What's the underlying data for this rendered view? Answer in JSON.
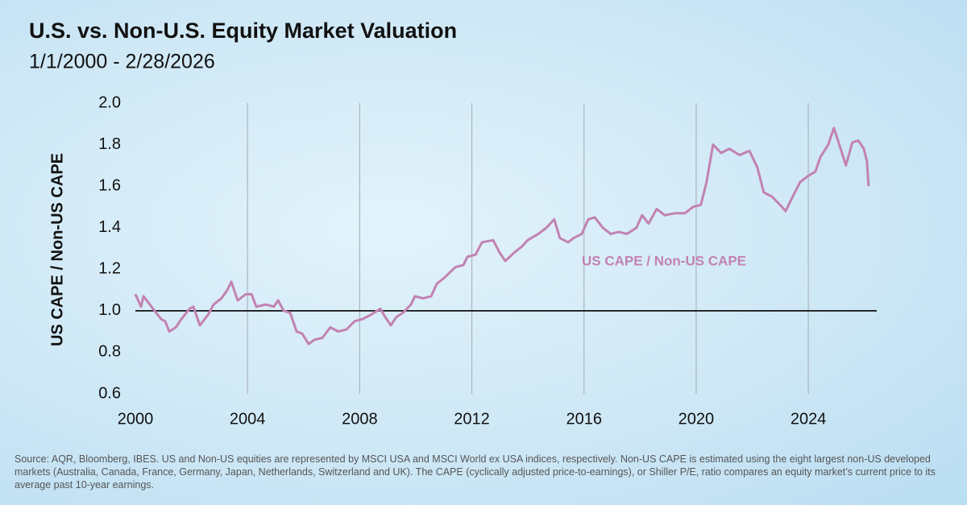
{
  "chart_data": {
    "type": "line",
    "title": "U.S. vs. Non-U.S. Equity Market Valuation",
    "subtitle": "1/1/2000 - 2/28/2026",
    "y_label": "US CAPE / Non-US CAPE",
    "source": "Source: AQR, Bloomberg, IBES. US and Non-US equities are represented by MSCI USA and MSCI World ex USA indices, respectively. Non-US CAPE is estimated using the eight largest non-US developed markets (Australia, Canada, France, Germany, Japan, Netherlands, Switzerland and UK). The CAPE (cyclically adjusted price-to-earnings), or Shiller P/E, ratio compares an equity market’s current price to its average past 10-year earnings.",
    "xlim": [
      2000,
      2026.44
    ],
    "xticks": [
      2000,
      2004,
      2008,
      2012,
      2016,
      2020,
      2024
    ],
    "ylim": [
      0.6,
      2.0
    ],
    "yticks": [
      0.6,
      0.8,
      {
        "value": 1.0,
        "label": "1.0"
      },
      1.2,
      1.4,
      1.6,
      1.8,
      {
        "value": 2.0,
        "label": "2.0"
      }
    ],
    "reference_line": 1.0,
    "grid": "x",
    "series": [
      {
        "name": "US CAPE / Non-US CAPE",
        "color": "#c282b2",
        "x": [
          2000.0,
          2000.2,
          2000.29,
          2000.63,
          2000.92,
          2001.06,
          2001.21,
          2001.44,
          2001.64,
          2001.93,
          2002.07,
          2002.3,
          2002.59,
          2002.79,
          2003.07,
          2003.28,
          2003.42,
          2003.65,
          2003.94,
          2004.14,
          2004.31,
          2004.66,
          2004.94,
          2005.09,
          2005.29,
          2005.52,
          2005.75,
          2005.95,
          2006.18,
          2006.38,
          2006.67,
          2006.95,
          2007.24,
          2007.53,
          2007.82,
          2008.1,
          2008.39,
          2008.74,
          2008.91,
          2009.11,
          2009.31,
          2009.54,
          2009.83,
          2009.97,
          2010.26,
          2010.55,
          2010.75,
          2011.03,
          2011.41,
          2011.7,
          2011.84,
          2012.13,
          2012.36,
          2012.76,
          2012.99,
          2013.19,
          2013.51,
          2013.79,
          2013.99,
          2014.37,
          2014.66,
          2014.94,
          2015.14,
          2015.43,
          2015.63,
          2015.92,
          2016.15,
          2016.38,
          2016.67,
          2016.95,
          2017.24,
          2017.53,
          2017.87,
          2018.07,
          2018.3,
          2018.59,
          2018.88,
          2019.25,
          2019.6,
          2019.89,
          2020.17,
          2020.37,
          2020.6,
          2020.89,
          2021.18,
          2021.55,
          2021.9,
          2022.18,
          2022.41,
          2022.7,
          2022.99,
          2023.19,
          2023.48,
          2023.71,
          2024.0,
          2024.25,
          2024.43,
          2024.71,
          2024.91,
          2025.2,
          2025.34,
          2025.57,
          2025.78,
          2025.98,
          2026.09,
          2026.15
        ],
        "values": [
          1.08,
          1.02,
          1.07,
          1.01,
          0.96,
          0.95,
          0.9,
          0.92,
          0.96,
          1.01,
          1.02,
          0.93,
          0.98,
          1.03,
          1.06,
          1.1,
          1.14,
          1.05,
          1.08,
          1.08,
          1.02,
          1.03,
          1.02,
          1.05,
          1.0,
          0.99,
          0.9,
          0.89,
          0.84,
          0.86,
          0.87,
          0.92,
          0.9,
          0.91,
          0.95,
          0.96,
          0.98,
          1.01,
          0.97,
          0.93,
          0.97,
          0.99,
          1.03,
          1.07,
          1.06,
          1.07,
          1.13,
          1.16,
          1.21,
          1.22,
          1.26,
          1.27,
          1.33,
          1.34,
          1.28,
          1.24,
          1.28,
          1.31,
          1.34,
          1.37,
          1.4,
          1.44,
          1.35,
          1.33,
          1.35,
          1.37,
          1.44,
          1.45,
          1.4,
          1.37,
          1.38,
          1.37,
          1.4,
          1.46,
          1.42,
          1.49,
          1.46,
          1.47,
          1.47,
          1.5,
          1.51,
          1.62,
          1.8,
          1.76,
          1.78,
          1.75,
          1.77,
          1.69,
          1.57,
          1.55,
          1.51,
          1.48,
          1.56,
          1.62,
          1.65,
          1.67,
          1.74,
          1.8,
          1.88,
          1.76,
          1.7,
          1.81,
          1.82,
          1.78,
          1.72,
          1.6
        ]
      }
    ]
  }
}
